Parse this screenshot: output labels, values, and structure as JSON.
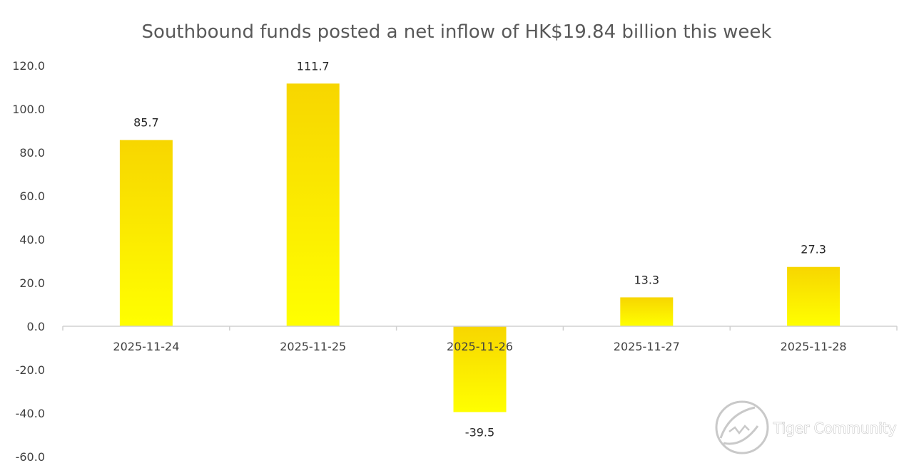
{
  "chart_data": {
    "type": "bar",
    "title": "Southbound funds posted a net inflow of HK$19.84 billion this week",
    "categories": [
      "2025-11-24",
      "2025-11-25",
      "2025-11-26",
      "2025-11-27",
      "2025-11-28"
    ],
    "values": [
      85.7,
      111.7,
      -39.5,
      13.3,
      27.3
    ],
    "data_labels": [
      "85.7",
      "111.7",
      "-39.5",
      "13.3",
      "27.3"
    ],
    "ylim": [
      -60,
      120
    ],
    "yticks": [
      "120.0",
      "100.0",
      "80.0",
      "60.0",
      "40.0",
      "20.0",
      "0.0",
      "-20.0",
      "-40.0",
      "-60.0"
    ],
    "ytick_values": [
      120,
      100,
      80,
      60,
      40,
      20,
      0,
      -20,
      -40,
      -60
    ],
    "xlabel": "",
    "ylabel": "",
    "grid": false,
    "legend": "none",
    "bar_color_top": "#f7d600",
    "bar_color_bottom": "#ffff00"
  },
  "watermark": {
    "text": "Tiger Community"
  }
}
